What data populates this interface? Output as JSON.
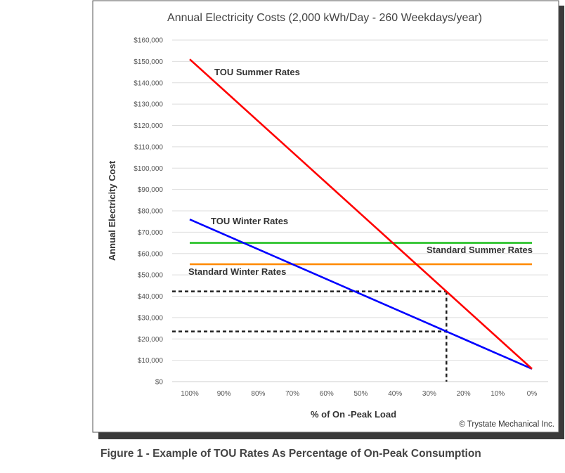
{
  "chart_data": {
    "type": "line",
    "title": "Annual Electricity Costs (2,000 kWh/Day - 260 Weekdays/year)",
    "xlabel": "% of On -Peak Load",
    "ylabel": "Annual Electricity Cost",
    "ylim": [
      0,
      160000
    ],
    "yticks": [
      0,
      10000,
      20000,
      30000,
      40000,
      50000,
      60000,
      70000,
      80000,
      90000,
      100000,
      110000,
      120000,
      130000,
      140000,
      150000,
      160000
    ],
    "ytick_labels": [
      "$0",
      "$10,000",
      "$20,000",
      "$30,000",
      "$40,000",
      "$50,000",
      "$60,000",
      "$70,000",
      "$80,000",
      "$90,000",
      "$100,000",
      "$110,000",
      "$120,000",
      "$130,000",
      "$140,000",
      "$150,000",
      "$160,000"
    ],
    "categories": [
      "100%",
      "90%",
      "80%",
      "70%",
      "60%",
      "50%",
      "40%",
      "30%",
      "20%",
      "10%",
      "0%"
    ],
    "grid": true,
    "series": [
      {
        "name": "TOU Summer Rates",
        "color": "#ff0000",
        "values": [
          151000,
          136500,
          122000,
          107500,
          93000,
          78500,
          64000,
          49500,
          35000,
          20500,
          6000
        ]
      },
      {
        "name": "TOU Winter Rates",
        "color": "#0000ff",
        "values": [
          76000,
          69000,
          62000,
          55000,
          48000,
          41000,
          34000,
          27000,
          20000,
          13000,
          6000
        ]
      },
      {
        "name": "Standard Summer Rates",
        "color": "#22c022",
        "values": [
          65000,
          65000,
          65000,
          65000,
          65000,
          65000,
          65000,
          65000,
          65000,
          65000,
          65000
        ]
      },
      {
        "name": "Standard Winter Rates",
        "color": "#ff8c00",
        "values": [
          55000,
          55000,
          55000,
          55000,
          55000,
          55000,
          55000,
          55000,
          55000,
          55000,
          55000
        ]
      }
    ],
    "annotations": {
      "marker_x_percent": 25,
      "summer_cost_at_marker": 42250,
      "winter_cost_at_marker": 23500
    },
    "copyright": "© Trystate Mechanical Inc."
  },
  "caption": "Figure 1 - Example of TOU Rates As Percentage of On-Peak Consumption"
}
